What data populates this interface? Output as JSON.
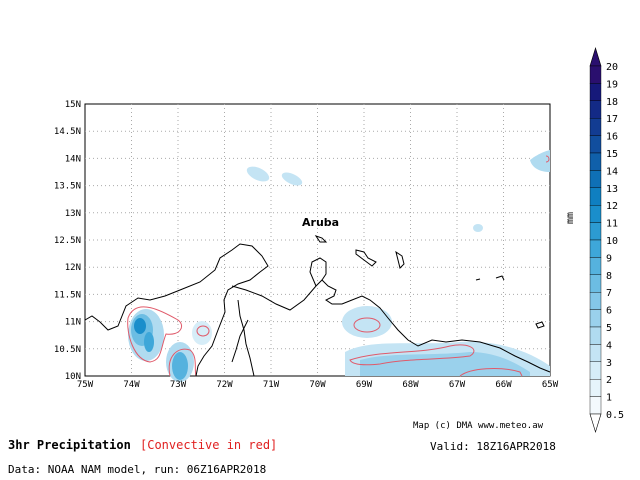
{
  "title": "3hr Precipitation",
  "subtitle": "[Convective in red]",
  "valid": "Valid: 18Z16APR2018",
  "credit": "Map (c) DMA www.meteo.aw",
  "data_line": "Data: NOAA NAM model, run: 06Z16APR2018",
  "place_label": "Aruba",
  "unit": "mm",
  "lat_labels": [
    "15N",
    "14.5N",
    "14N",
    "13.5N",
    "13N",
    "12.5N",
    "12N",
    "11.5N",
    "11N",
    "10.5N",
    "10N"
  ],
  "lon_labels": [
    "75W",
    "74W",
    "73W",
    "72W",
    "71W",
    "70W",
    "69W",
    "68W",
    "67W",
    "66W",
    "65W"
  ],
  "colorbar": {
    "labels": [
      "20",
      "19",
      "18",
      "17",
      "16",
      "15",
      "14",
      "13",
      "12",
      "11",
      "10",
      "9",
      "8",
      "7",
      "6",
      "5",
      "4",
      "3",
      "2",
      "1",
      "0.5"
    ],
    "colors": [
      "#2a0f6e",
      "#16197a",
      "#132a86",
      "#123c92",
      "#114e9e",
      "#1060aa",
      "#0f70b6",
      "#0f7fc1",
      "#1a8ecb",
      "#2c9bd2",
      "#3ea7d9",
      "#55b2de",
      "#6cbde3",
      "#84c7e8",
      "#9ad1ec",
      "#b0dbf0",
      "#c4e4f4",
      "#d6edf8",
      "#e6f4fb",
      "#f3f9fd"
    ],
    "convective_color": "#e05a6a"
  }
}
